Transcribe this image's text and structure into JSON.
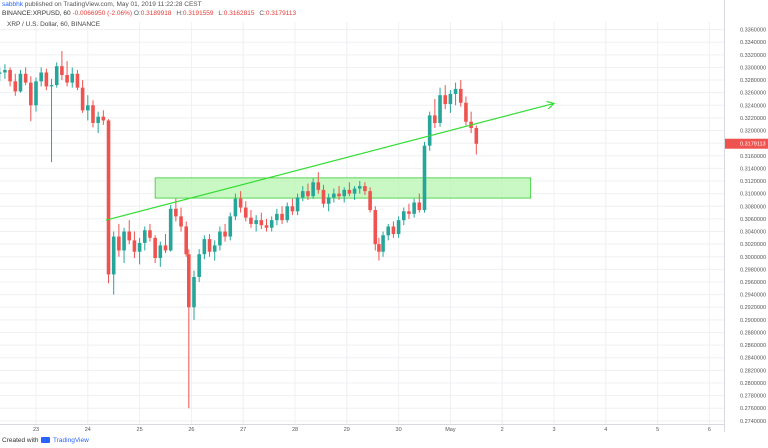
{
  "header": {
    "author": "sabbhk",
    "published_text": "published on TradingView.com, May 01, 2019 11:22:28 CEST",
    "exchange": "BINANCE:XRPUSD, 60",
    "change": "-0.0066950 (-2.06%)",
    "o_label": "O:",
    "o_value": "0.3189918",
    "h_label": "H:",
    "h_value": "0.3191559",
    "l_label": "L:",
    "l_value": "0.3162815",
    "c_label": "C:",
    "c_value": "0.3179113"
  },
  "legend": {
    "symbol": "XRP / U.S. Dollar, 60, BINANCE"
  },
  "footer": {
    "created_with": "Created with",
    "brand": "TradingView"
  },
  "colors": {
    "up": "#26a69a",
    "down": "#ef5350",
    "trendline": "#33dd33",
    "zone_fill": "#b7f5b0",
    "zone_border": "#33cc33",
    "price_label_bg": "#ef5350",
    "grid": "#eef0f3"
  },
  "chart_data": {
    "type": "candlestick",
    "x_ticks": [
      "23",
      "24",
      "25",
      "26",
      "27",
      "28",
      "29",
      "30",
      "May",
      "2",
      "3",
      "4",
      "5",
      "6"
    ],
    "y_ticks": [
      "0.3360000",
      "0.3340000",
      "0.3320000",
      "0.3300000",
      "0.3280000",
      "0.3260000",
      "0.3240000",
      "0.3220000",
      "0.3200000",
      "0.3180000",
      "0.3160000",
      "0.3140000",
      "0.3120000",
      "0.3100000",
      "0.3080000",
      "0.3060000",
      "0.3040000",
      "0.3020000",
      "0.3000000",
      "0.2980000",
      "0.2960000",
      "0.2940000",
      "0.2920000",
      "0.2900000",
      "0.2880000",
      "0.2860000",
      "0.2840000",
      "0.2820000",
      "0.2800000",
      "0.2780000",
      "0.2760000",
      "0.2740000"
    ],
    "ylim": [
      0.2735,
      0.3372
    ],
    "last_price_label": "0.3179113",
    "last_price": 0.3179113,
    "zone": {
      "x_from": 25.3,
      "x_to": 32.55,
      "y_from": 0.3093,
      "y_to": 0.3125
    },
    "trendline": {
      "x1": 24.35,
      "y1": 0.3058,
      "x2": 33.0,
      "y2": 0.3243
    },
    "candles": [
      [
        22.3,
        0.329,
        0.33,
        0.3278,
        0.3292
      ],
      [
        22.4,
        0.3292,
        0.3305,
        0.3282,
        0.3296
      ],
      [
        22.5,
        0.3296,
        0.33,
        0.327,
        0.3278
      ],
      [
        22.6,
        0.3278,
        0.329,
        0.3255,
        0.3262
      ],
      [
        22.7,
        0.3262,
        0.3296,
        0.326,
        0.329
      ],
      [
        22.8,
        0.329,
        0.33,
        0.3272,
        0.3276
      ],
      [
        22.9,
        0.3276,
        0.3286,
        0.3215,
        0.324
      ],
      [
        23.0,
        0.324,
        0.3284,
        0.323,
        0.3278
      ],
      [
        23.1,
        0.3278,
        0.33,
        0.327,
        0.3292
      ],
      [
        23.2,
        0.3292,
        0.3298,
        0.3264,
        0.327
      ],
      [
        23.3,
        0.327,
        0.3282,
        0.315,
        0.3272
      ],
      [
        23.4,
        0.3272,
        0.3308,
        0.3268,
        0.3302
      ],
      [
        23.5,
        0.3302,
        0.3326,
        0.328,
        0.3288
      ],
      [
        23.6,
        0.3288,
        0.331,
        0.327,
        0.3276
      ],
      [
        23.7,
        0.3276,
        0.33,
        0.3268,
        0.329
      ],
      [
        23.8,
        0.329,
        0.3296,
        0.3264,
        0.3268
      ],
      [
        23.9,
        0.3268,
        0.328,
        0.3228,
        0.3232
      ],
      [
        24.0,
        0.3232,
        0.3256,
        0.3216,
        0.324
      ],
      [
        24.1,
        0.324,
        0.3248,
        0.3205,
        0.3212
      ],
      [
        24.2,
        0.3212,
        0.323,
        0.3196,
        0.3222
      ],
      [
        24.3,
        0.3222,
        0.3232,
        0.3209,
        0.3216
      ],
      [
        24.4,
        0.3216,
        0.3218,
        0.2958,
        0.2972
      ],
      [
        24.5,
        0.2972,
        0.304,
        0.294,
        0.3032
      ],
      [
        24.6,
        0.3032,
        0.3052,
        0.3,
        0.301
      ],
      [
        24.7,
        0.301,
        0.3046,
        0.299,
        0.304
      ],
      [
        24.8,
        0.304,
        0.3058,
        0.302,
        0.3026
      ],
      [
        24.9,
        0.3026,
        0.304,
        0.2998,
        0.3008
      ],
      [
        25.0,
        0.3008,
        0.303,
        0.2988,
        0.3022
      ],
      [
        25.1,
        0.3022,
        0.3048,
        0.301,
        0.3042
      ],
      [
        25.2,
        0.3042,
        0.3052,
        0.3024,
        0.303
      ],
      [
        25.3,
        0.303,
        0.3034,
        0.299,
        0.2998
      ],
      [
        25.4,
        0.2998,
        0.3024,
        0.2984,
        0.3018
      ],
      [
        25.5,
        0.3018,
        0.3036,
        0.3006,
        0.301
      ],
      [
        25.6,
        0.301,
        0.3082,
        0.3008,
        0.3076
      ],
      [
        25.7,
        0.3076,
        0.3092,
        0.3056,
        0.3064
      ],
      [
        25.8,
        0.3064,
        0.3078,
        0.304,
        0.3048
      ],
      [
        25.9,
        0.3048,
        0.3056,
        0.3,
        0.3004
      ],
      [
        25.95,
        0.3004,
        0.3012,
        0.276,
        0.292
      ],
      [
        26.05,
        0.292,
        0.2978,
        0.29,
        0.2968
      ],
      [
        26.15,
        0.2968,
        0.3012,
        0.296,
        0.3004
      ],
      [
        26.25,
        0.3004,
        0.3034,
        0.2996,
        0.3028
      ],
      [
        26.35,
        0.3028,
        0.3036,
        0.3,
        0.3008
      ],
      [
        26.45,
        0.3008,
        0.3026,
        0.2994,
        0.3018
      ],
      [
        26.55,
        0.3018,
        0.3048,
        0.301,
        0.304
      ],
      [
        26.65,
        0.304,
        0.3052,
        0.3024,
        0.3032
      ],
      [
        26.75,
        0.3032,
        0.307,
        0.3026,
        0.3064
      ],
      [
        26.85,
        0.3064,
        0.31,
        0.3058,
        0.3092
      ],
      [
        26.95,
        0.3092,
        0.3104,
        0.307,
        0.3078
      ],
      [
        27.05,
        0.3078,
        0.3088,
        0.3056,
        0.3062
      ],
      [
        27.15,
        0.3062,
        0.3074,
        0.3046,
        0.3052
      ],
      [
        27.25,
        0.3052,
        0.3066,
        0.304,
        0.3058
      ],
      [
        27.35,
        0.3058,
        0.307,
        0.3044,
        0.305
      ],
      [
        27.45,
        0.305,
        0.306,
        0.304,
        0.3046
      ],
      [
        27.55,
        0.3046,
        0.3064,
        0.304,
        0.3058
      ],
      [
        27.65,
        0.3058,
        0.3076,
        0.305,
        0.3068
      ],
      [
        27.75,
        0.3068,
        0.308,
        0.3052,
        0.3058
      ],
      [
        27.85,
        0.3058,
        0.3086,
        0.3054,
        0.308
      ],
      [
        27.95,
        0.308,
        0.3092,
        0.3066,
        0.3072
      ],
      [
        28.05,
        0.3072,
        0.31,
        0.3066,
        0.3094
      ],
      [
        28.15,
        0.3094,
        0.3112,
        0.3088,
        0.3104
      ],
      [
        28.25,
        0.3104,
        0.3116,
        0.309,
        0.3096
      ],
      [
        28.35,
        0.3096,
        0.3124,
        0.3092,
        0.3118
      ],
      [
        28.45,
        0.3118,
        0.3134,
        0.31,
        0.3106
      ],
      [
        28.55,
        0.3106,
        0.3114,
        0.3078,
        0.3084
      ],
      [
        28.65,
        0.3084,
        0.31,
        0.3072,
        0.3094
      ],
      [
        28.75,
        0.3094,
        0.3108,
        0.3086,
        0.31
      ],
      [
        28.85,
        0.31,
        0.3112,
        0.309,
        0.3096
      ],
      [
        28.95,
        0.3096,
        0.311,
        0.3086,
        0.3106
      ],
      [
        29.05,
        0.3106,
        0.3118,
        0.3096,
        0.31
      ],
      [
        29.15,
        0.31,
        0.3112,
        0.309,
        0.3108
      ],
      [
        29.25,
        0.3108,
        0.312,
        0.31,
        0.3112
      ],
      [
        29.35,
        0.3112,
        0.3118,
        0.3098,
        0.3104
      ],
      [
        29.45,
        0.3104,
        0.311,
        0.307,
        0.3074
      ],
      [
        29.55,
        0.3074,
        0.308,
        0.301,
        0.302
      ],
      [
        29.62,
        0.302,
        0.303,
        0.2994,
        0.3008
      ],
      [
        29.7,
        0.3008,
        0.304,
        0.3,
        0.3034
      ],
      [
        29.8,
        0.3034,
        0.3052,
        0.3026,
        0.3048
      ],
      [
        29.9,
        0.3048,
        0.3056,
        0.303,
        0.3036
      ],
      [
        30.0,
        0.3036,
        0.3064,
        0.303,
        0.3058
      ],
      [
        30.1,
        0.3058,
        0.3078,
        0.305,
        0.3072
      ],
      [
        30.2,
        0.3072,
        0.3084,
        0.306,
        0.3068
      ],
      [
        30.3,
        0.3068,
        0.3092,
        0.3062,
        0.3086
      ],
      [
        30.4,
        0.3086,
        0.31,
        0.307,
        0.3074
      ],
      [
        30.5,
        0.3074,
        0.3182,
        0.307,
        0.3176
      ],
      [
        30.6,
        0.3176,
        0.323,
        0.3168,
        0.3224
      ],
      [
        30.7,
        0.3224,
        0.325,
        0.3204,
        0.3212
      ],
      [
        30.8,
        0.3212,
        0.3268,
        0.3206,
        0.3256
      ],
      [
        30.9,
        0.3256,
        0.3272,
        0.3234,
        0.3242
      ],
      [
        31.0,
        0.3242,
        0.3264,
        0.3228,
        0.3258
      ],
      [
        31.1,
        0.3258,
        0.3276,
        0.324,
        0.3266
      ],
      [
        31.2,
        0.3266,
        0.328,
        0.3238,
        0.3244
      ],
      [
        31.3,
        0.3244,
        0.3254,
        0.3208,
        0.3214
      ],
      [
        31.4,
        0.3214,
        0.323,
        0.3196,
        0.3204
      ],
      [
        31.5,
        0.3204,
        0.3208,
        0.3162,
        0.3179
      ]
    ]
  }
}
